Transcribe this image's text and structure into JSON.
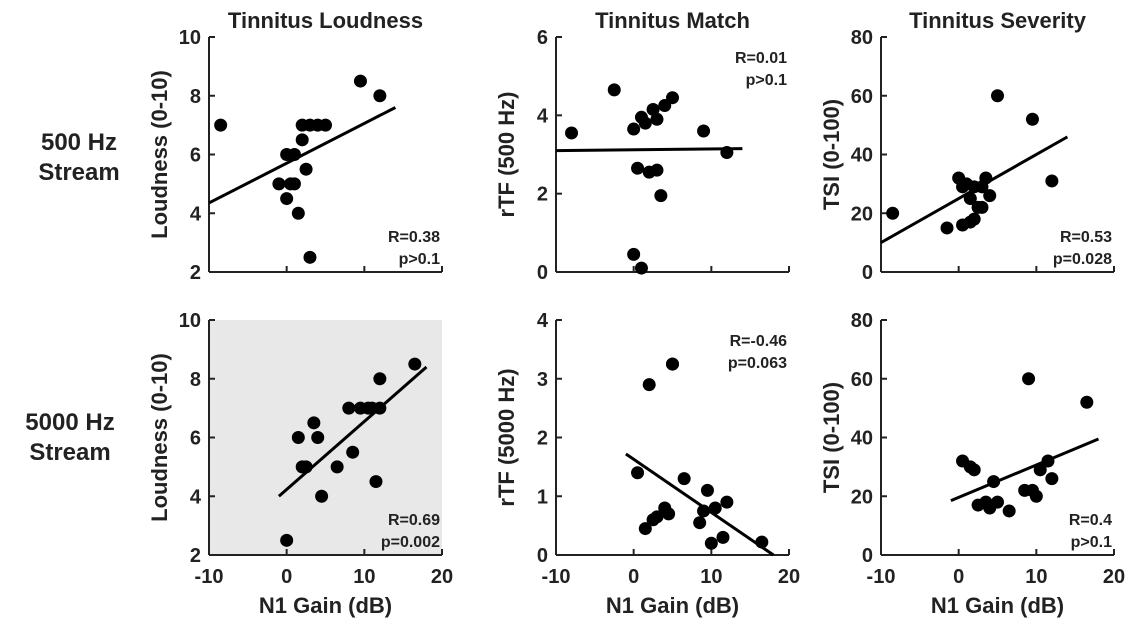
{
  "row_labels": {
    "row1": [
      "500 Hz",
      "Stream"
    ],
    "row2": [
      "5000 Hz",
      "Stream"
    ]
  },
  "chart_data": [
    {
      "type": "scatter",
      "title": "Tinnitus Loudness",
      "xlabel": "",
      "ylabel": "Loudness (0-10)",
      "xlim": [
        -10,
        20
      ],
      "ylim": [
        2,
        10
      ],
      "xticks": [
        "-10",
        "0",
        "10",
        "20"
      ],
      "yticks": [
        "2",
        "4",
        "6",
        "8",
        "10"
      ],
      "show_xticklabels": false,
      "x": [
        -8.5,
        -1,
        1.5,
        0,
        1,
        0.5,
        0,
        1,
        2.5,
        2,
        3,
        2,
        4,
        5,
        9.5,
        12,
        3
      ],
      "y": [
        7,
        5,
        4,
        4.5,
        5,
        5,
        6,
        6,
        5.5,
        6.5,
        7,
        7,
        7,
        7,
        8.5,
        8,
        2.5
      ],
      "fit": {
        "x": [
          -10,
          14
        ],
        "y": [
          4.35,
          7.6
        ]
      },
      "annotation": [
        "R=0.38",
        "p>0.1"
      ],
      "annotation_position": "bottom-right",
      "highlight": false
    },
    {
      "type": "scatter",
      "title": "Tinnitus Match",
      "xlabel": "",
      "ylabel": "rTF (500 Hz)",
      "xlim": [
        -10,
        20
      ],
      "ylim": [
        0,
        6
      ],
      "xticks": [
        "-10",
        "0",
        "10",
        "20"
      ],
      "yticks": [
        "0",
        "2",
        "4",
        "6"
      ],
      "show_xticklabels": false,
      "x": [
        -8,
        -2.5,
        0,
        1,
        1.5,
        2.5,
        3,
        4,
        5,
        9,
        12,
        0.5,
        2,
        3,
        3.5,
        0,
        1
      ],
      "y": [
        3.55,
        4.65,
        3.65,
        3.95,
        3.8,
        4.15,
        3.9,
        4.25,
        4.45,
        3.6,
        3.05,
        2.65,
        2.55,
        2.6,
        1.95,
        0.45,
        0.1
      ],
      "fit": {
        "x": [
          -10,
          14
        ],
        "y": [
          3.1,
          3.15
        ]
      },
      "annotation": [
        "R=0.01",
        "p>0.1"
      ],
      "annotation_position": "top-right",
      "highlight": false
    },
    {
      "type": "scatter",
      "title": "Tinnitus Severity",
      "xlabel": "",
      "ylabel": "TSI (0-100)",
      "xlim": [
        -10,
        20
      ],
      "ylim": [
        0,
        80
      ],
      "xticks": [
        "-10",
        "0",
        "10",
        "20"
      ],
      "yticks": [
        "0",
        "20",
        "40",
        "60",
        "80"
      ],
      "show_xticklabels": false,
      "x": [
        -8.5,
        -1.5,
        0,
        0.5,
        1,
        1.5,
        2,
        2.5,
        3,
        3.5,
        0.5,
        1.5,
        2,
        3,
        4,
        5,
        9.5,
        12
      ],
      "y": [
        20,
        15,
        32,
        29,
        30,
        25,
        29,
        22,
        22,
        32,
        16,
        17,
        18,
        29,
        26,
        60,
        52,
        31
      ],
      "fit": {
        "x": [
          -10,
          14
        ],
        "y": [
          10,
          46
        ]
      },
      "annotation": [
        "R=0.53",
        "p=0.028"
      ],
      "annotation_position": "bottom-right",
      "highlight": false
    },
    {
      "type": "scatter",
      "title": "",
      "xlabel": "N1 Gain (dB)",
      "ylabel": "Loudness (0-10)",
      "xlim": [
        -10,
        20
      ],
      "ylim": [
        2,
        10
      ],
      "xticks": [
        "-10",
        "0",
        "10",
        "20"
      ],
      "yticks": [
        "2",
        "4",
        "6",
        "8",
        "10"
      ],
      "show_xticklabels": true,
      "x": [
        0,
        1.5,
        2,
        2.5,
        3.5,
        4,
        4.5,
        6.5,
        8,
        8.5,
        9.5,
        10.5,
        11,
        12,
        11.5,
        16.5,
        12
      ],
      "y": [
        2.5,
        6,
        5,
        5,
        6.5,
        6,
        4,
        5,
        7,
        5.5,
        7,
        7,
        7,
        7,
        4.5,
        8.5,
        8
      ],
      "fit": {
        "x": [
          -1,
          18
        ],
        "y": [
          4,
          8.4
        ]
      },
      "annotation": [
        "R=0.69",
        "p=0.002"
      ],
      "annotation_position": "bottom-right",
      "highlight": true
    },
    {
      "type": "scatter",
      "title": "",
      "xlabel": "N1 Gain (dB)",
      "ylabel": "rTF (5000 Hz)",
      "xlim": [
        -10,
        20
      ],
      "ylim": [
        0,
        4
      ],
      "xticks": [
        "-10",
        "0",
        "10",
        "20"
      ],
      "yticks": [
        "0",
        "1",
        "2",
        "3",
        "4"
      ],
      "show_xticklabels": true,
      "x": [
        0.5,
        1.5,
        2.5,
        3,
        4,
        4.5,
        5,
        6.5,
        8.5,
        9,
        9.5,
        10,
        10.5,
        11.5,
        12,
        16.5,
        2,
        5
      ],
      "y": [
        1.4,
        0.45,
        0.6,
        0.65,
        0.8,
        0.7,
        3.25,
        1.3,
        0.55,
        0.75,
        1.1,
        0.2,
        0.8,
        0.3,
        0.9,
        0.22,
        2.9,
        3.25
      ],
      "fit": {
        "x": [
          -1,
          18
        ],
        "y": [
          1.72,
          0.0
        ]
      },
      "annotation": [
        "R=-0.46",
        "p=0.063"
      ],
      "annotation_position": "top-right",
      "highlight": false
    },
    {
      "type": "scatter",
      "title": "",
      "xlabel": "N1 Gain (dB)",
      "ylabel": "TSI (0-100)",
      "xlim": [
        -10,
        20
      ],
      "ylim": [
        0,
        80
      ],
      "xticks": [
        "-10",
        "0",
        "10",
        "20"
      ],
      "yticks": [
        "0",
        "20",
        "40",
        "60",
        "80"
      ],
      "show_xticklabels": true,
      "x": [
        0.5,
        1.5,
        2,
        2.5,
        3.5,
        4,
        4.5,
        6.5,
        8.5,
        9,
        9.5,
        10,
        10.5,
        11.5,
        12,
        16.5,
        5
      ],
      "y": [
        32,
        30,
        29,
        17,
        18,
        16,
        25,
        15,
        22,
        60,
        22,
        20,
        29,
        32,
        26,
        52,
        18
      ],
      "fit": {
        "x": [
          -1,
          18
        ],
        "y": [
          18.5,
          39.5
        ]
      },
      "annotation": [
        "R=0.4",
        "p>0.1"
      ],
      "annotation_position": "bottom-right",
      "highlight": false
    }
  ]
}
